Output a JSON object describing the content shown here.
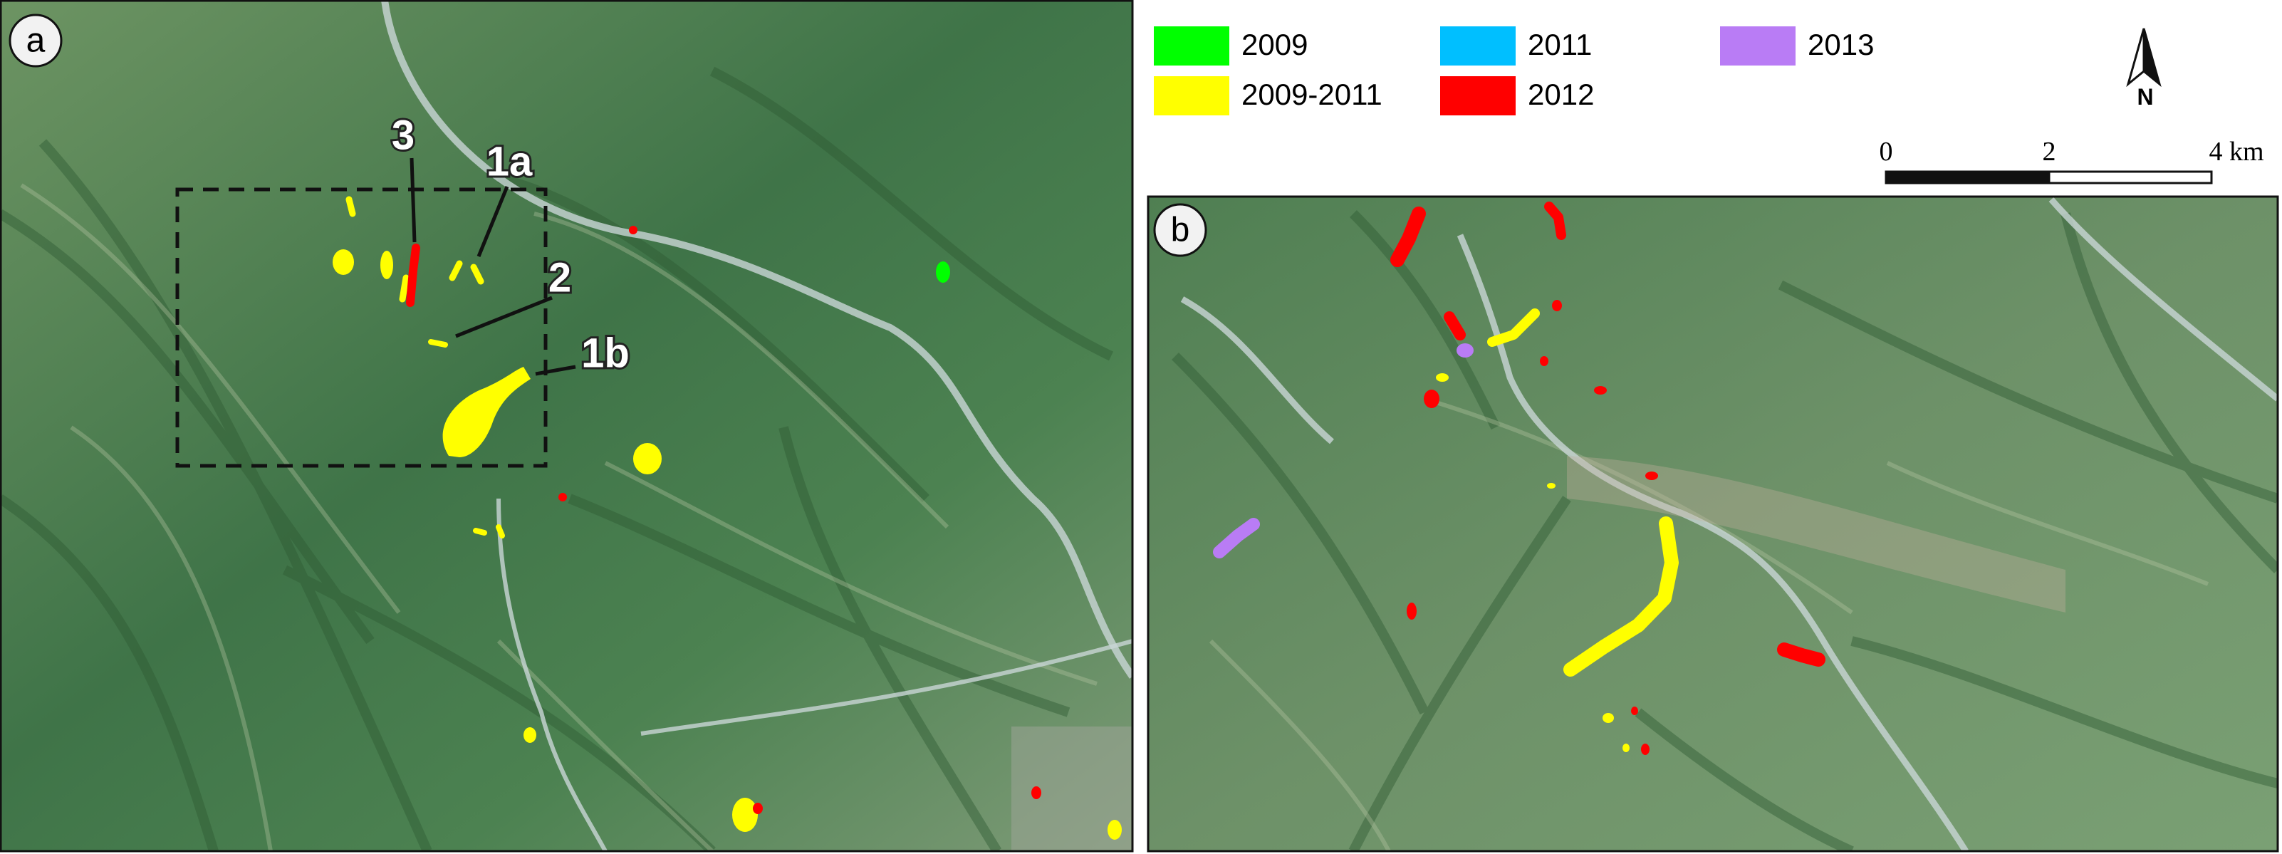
{
  "panels": [
    {
      "label": "a"
    },
    {
      "label": "b"
    }
  ],
  "legend": [
    {
      "label": "2009",
      "color": "#00ff00"
    },
    {
      "label": "2011",
      "color": "#00bfff"
    },
    {
      "label": "2013",
      "color": "#b97cf5"
    },
    {
      "label": "2009-2011",
      "color": "#ffff00"
    },
    {
      "label": "2012",
      "color": "#ff0000"
    }
  ],
  "north_arrow": {
    "label": "N"
  },
  "scale_bar": {
    "labels": [
      "0",
      "2",
      "4 km"
    ]
  },
  "annotations": [
    "3",
    "1a",
    "2",
    "1b"
  ]
}
